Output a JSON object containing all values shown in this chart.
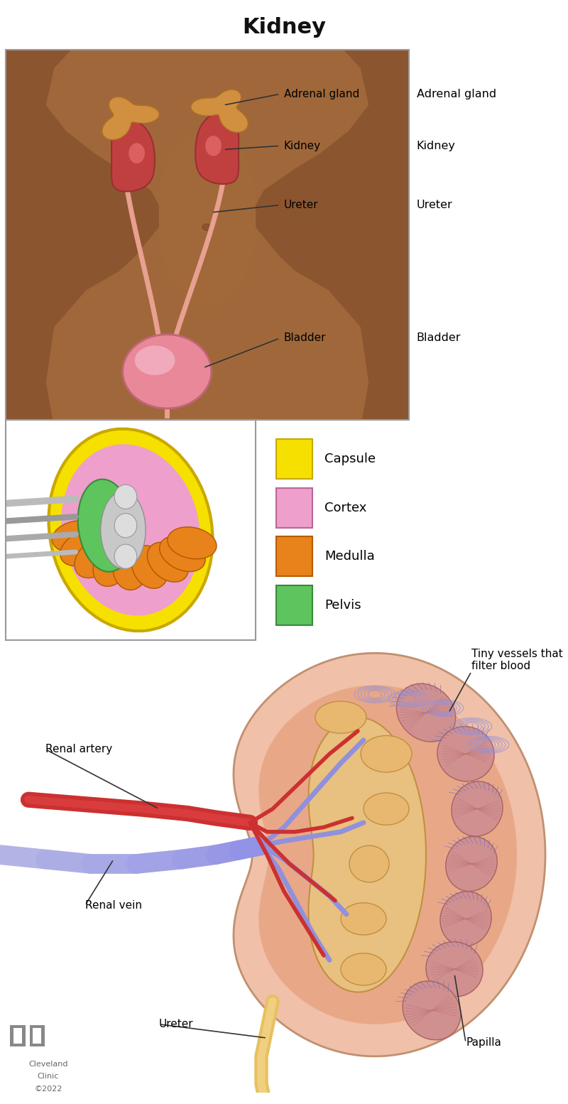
{
  "title": "Kidney",
  "title_fontsize": 22,
  "title_fontweight": "bold",
  "background_color": "#ffffff",
  "legend_items": [
    {
      "label": "Capsule",
      "color": "#F5E000",
      "ec": "#C8A800"
    },
    {
      "label": "Cortex",
      "color": "#EE9FCC",
      "ec": "#BB6699"
    },
    {
      "label": "Medulla",
      "color": "#E8821A",
      "ec": "#B85C00"
    },
    {
      "label": "Pelvis",
      "color": "#5EC45E",
      "ec": "#3A8A3A"
    }
  ],
  "skin_color": "#8B5530",
  "skin_light": "#A0683A",
  "skin_highlight": "#C08050",
  "kidney_red": "#C04040",
  "kidney_dark": "#993030",
  "adrenal_color": "#D09040",
  "adrenal_dark": "#B07020",
  "ureter_top_color": "#E8A090",
  "bladder_color": "#E88899",
  "bladder_dark": "#C06677",
  "capsule_color": "#F5E000",
  "cortex_color": "#EE9FCC",
  "medulla_color": "#E8821A",
  "pelvis_color": "#5EC45E",
  "vessel_gray": "#AAAAAA",
  "vessel_dark": "#888888",
  "kidney_outer_color": "#F0C0A8",
  "kidney_inner_color": "#E8A888",
  "pelvis_detail_color": "#E8C080",
  "calyx_color": "#E0B070",
  "papilla_color": "#D09090",
  "artery_color": "#CC3030",
  "artery_light": "#EE5050",
  "vein_color": "#9090DD",
  "vein_light": "#AAAAEE",
  "ureter_color": "#E8C060",
  "cc_text": "Cleveland\nClinic\n©2022"
}
